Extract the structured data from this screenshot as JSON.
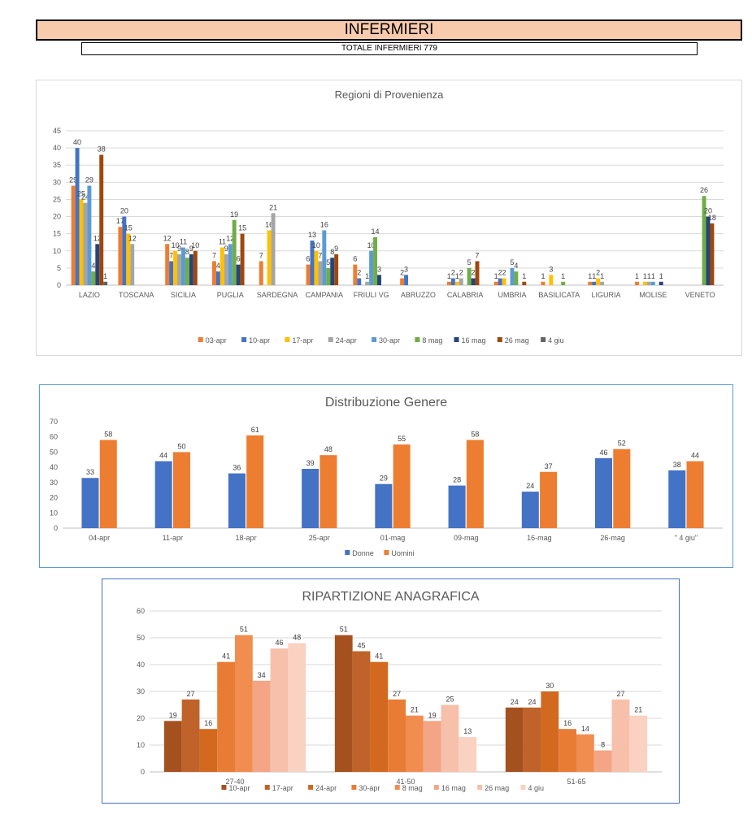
{
  "header": {
    "title": "INFERMIERI",
    "subtitle": "TOTALE INFERMIERI 779"
  },
  "chart_data": [
    {
      "id": "regioni",
      "type": "bar",
      "title": "Regioni di Provenienza",
      "ylim": [
        0,
        45
      ],
      "yticks": [
        0,
        5,
        10,
        15,
        20,
        25,
        30,
        35,
        40,
        45
      ],
      "grid": true,
      "legend_position": "bottom",
      "categories": [
        "LAZIO",
        "TOSCANA",
        "SICILIA",
        "PUGLIA",
        "SARDEGNA",
        "CAMPANIA",
        "FRIULI VG",
        "ABRUZZO",
        "CALABRIA",
        "UMBRIA",
        "BASILICATA",
        "LIGURIA",
        "MOLISE",
        "VENETO"
      ],
      "series": [
        {
          "name": "03-apr",
          "color": "#ed7d31",
          "values": [
            29,
            17,
            12,
            7,
            7,
            6,
            6,
            2,
            1,
            1,
            1,
            1,
            1,
            null
          ]
        },
        {
          "name": "10-apr",
          "color": "#4472c4",
          "values": [
            40,
            20,
            7,
            4,
            null,
            13,
            2,
            3,
            2,
            2,
            null,
            1,
            null,
            null
          ]
        },
        {
          "name": "17-apr",
          "color": "#ffc000",
          "values": [
            25,
            15,
            10,
            11,
            16,
            10,
            null,
            null,
            1,
            2,
            3,
            2,
            1,
            null
          ]
        },
        {
          "name": "24-apr",
          "color": "#a5a5a5",
          "values": [
            24,
            12,
            9,
            9,
            21,
            7,
            1,
            null,
            2,
            null,
            null,
            1,
            1,
            null
          ]
        },
        {
          "name": "30-apr",
          "color": "#5b9bd5",
          "values": [
            29,
            null,
            11,
            12,
            null,
            16,
            10,
            null,
            null,
            5,
            null,
            null,
            1,
            null
          ]
        },
        {
          "name": "8 mag",
          "color": "#70ad47",
          "values": [
            4,
            null,
            8,
            19,
            null,
            5,
            14,
            null,
            5,
            4,
            1,
            null,
            null,
            26
          ]
        },
        {
          "name": "16 mag",
          "color": "#264478",
          "values": [
            12,
            null,
            9,
            6,
            null,
            8,
            3,
            null,
            2,
            null,
            null,
            null,
            1,
            20
          ]
        },
        {
          "name": "26 mag",
          "color": "#9e480e",
          "values": [
            38,
            null,
            10,
            15,
            null,
            9,
            null,
            null,
            7,
            1,
            null,
            null,
            null,
            18
          ]
        },
        {
          "name": "4 giu",
          "color": "#636363",
          "values": [
            1,
            null,
            null,
            null,
            null,
            null,
            null,
            null,
            null,
            null,
            null,
            null,
            null,
            null
          ]
        }
      ]
    },
    {
      "id": "genere",
      "type": "bar",
      "title": "Distribuzione Genere",
      "ylim": [
        0,
        70
      ],
      "yticks": [
        0,
        10,
        20,
        30,
        40,
        50,
        60,
        70
      ],
      "grid": false,
      "legend_position": "bottom",
      "categories": [
        "04-apr",
        "11-apr",
        "18-apr",
        "25-apr",
        "01-mag",
        "09-mag",
        "16-mag",
        "26-mag",
        "\" 4 giu\""
      ],
      "series": [
        {
          "name": "Donne",
          "color": "#4472c4",
          "values": [
            33,
            44,
            36,
            39,
            29,
            28,
            24,
            46,
            38
          ]
        },
        {
          "name": "Uomini",
          "color": "#ed7d31",
          "values": [
            58,
            50,
            61,
            48,
            55,
            58,
            37,
            52,
            44
          ]
        }
      ]
    },
    {
      "id": "anagrafica",
      "type": "bar",
      "title": "RIPARTIZIONE ANAGRAFICA",
      "ylim": [
        0,
        60
      ],
      "yticks": [
        0,
        10,
        20,
        30,
        40,
        50,
        60
      ],
      "grid": true,
      "legend_position": "bottom",
      "categories": [
        "27-40",
        "41-50",
        "51-65"
      ],
      "series": [
        {
          "name": "10-apr",
          "color": "#a5511f",
          "values": [
            19,
            51,
            24
          ]
        },
        {
          "name": "17-apr",
          "color": "#c0632a",
          "values": [
            27,
            45,
            24
          ]
        },
        {
          "name": "24-apr",
          "color": "#d2691e",
          "values": [
            16,
            41,
            30
          ]
        },
        {
          "name": "30-apr",
          "color": "#e87c35",
          "values": [
            41,
            27,
            16
          ]
        },
        {
          "name": "8 mag",
          "color": "#f08d4f",
          "values": [
            51,
            21,
            14
          ]
        },
        {
          "name": "16 mag",
          "color": "#f3a585",
          "values": [
            34,
            19,
            8
          ]
        },
        {
          "name": "26 mag",
          "color": "#f7c0ab",
          "values": [
            46,
            25,
            27
          ]
        },
        {
          "name": "4 giu",
          "color": "#f9d2c2",
          "values": [
            48,
            13,
            21
          ]
        }
      ]
    }
  ]
}
